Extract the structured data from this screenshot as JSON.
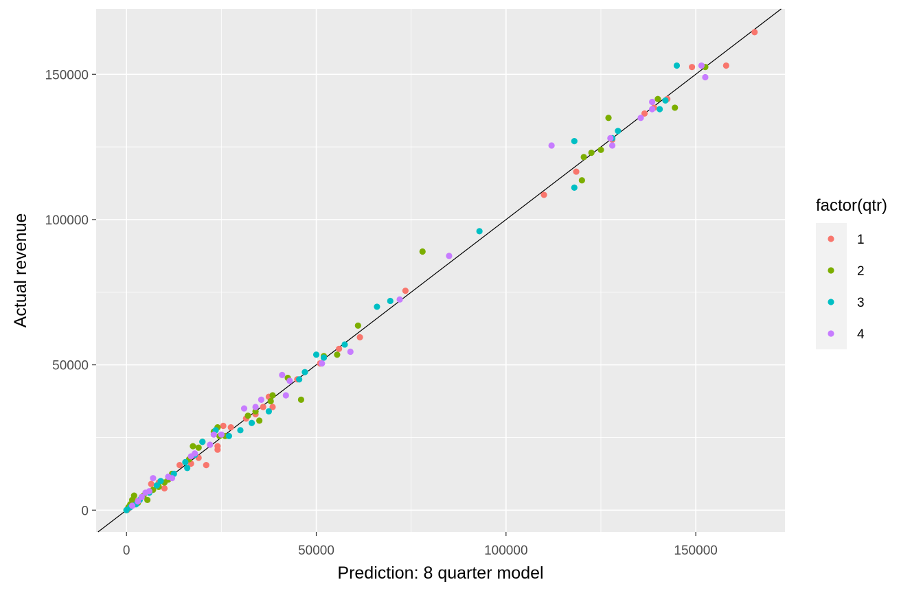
{
  "chart_data": {
    "type": "scatter",
    "xlabel": "Prediction: 8 quarter model",
    "ylabel": "Actual revenue",
    "xlim": [
      -8000,
      173500
    ],
    "ylim": [
      -7500,
      172500
    ],
    "x_ticks": [
      0,
      50000,
      100000,
      150000
    ],
    "x_tick_labels": [
      "0",
      "50000",
      "100000",
      "150000"
    ],
    "y_ticks": [
      0,
      50000,
      100000,
      150000
    ],
    "y_tick_labels": [
      "0",
      "50000",
      "100000",
      "150000"
    ],
    "grid": true,
    "reference_line": {
      "type": "identity",
      "slope": 1,
      "intercept": 0,
      "color": "#000000"
    },
    "legend": {
      "title": "factor(qtr)",
      "position": "right",
      "entries": [
        {
          "label": "1",
          "color": "#F8766D"
        },
        {
          "label": "2",
          "color": "#7CAE00"
        },
        {
          "label": "3",
          "color": "#00BFC4"
        },
        {
          "label": "4",
          "color": "#C77CFF"
        }
      ]
    },
    "series": [
      {
        "name": "1",
        "color": "#F8766D",
        "points": [
          [
            165500,
            164500
          ],
          [
            158000,
            153000
          ],
          [
            149000,
            152500
          ],
          [
            142500,
            141500
          ],
          [
            139000,
            138500
          ],
          [
            136500,
            136500
          ],
          [
            128000,
            127500
          ],
          [
            118500,
            116500
          ],
          [
            110000,
            108500
          ],
          [
            73500,
            75500
          ],
          [
            61500,
            59500
          ],
          [
            56000,
            55500
          ],
          [
            52000,
            52500
          ],
          [
            51000,
            50500
          ],
          [
            45000,
            45000
          ],
          [
            38500,
            35500
          ],
          [
            37500,
            39000
          ],
          [
            36000,
            35500
          ],
          [
            34000,
            33000
          ],
          [
            31500,
            31500
          ],
          [
            27500,
            28500
          ],
          [
            25500,
            29000
          ],
          [
            24000,
            22000
          ],
          [
            24000,
            20800
          ],
          [
            21000,
            15500
          ],
          [
            19000,
            18000
          ],
          [
            17000,
            16000
          ],
          [
            14000,
            15500
          ],
          [
            10000,
            7500
          ],
          [
            8500,
            9500
          ],
          [
            6500,
            9000
          ],
          [
            4000,
            4500
          ],
          [
            2500,
            3000
          ],
          [
            1500,
            2000
          ],
          [
            500,
            500
          ],
          [
            200,
            100
          ],
          [
            300,
            300
          ]
        ]
      },
      {
        "name": "2",
        "color": "#7CAE00",
        "points": [
          [
            152500,
            152500
          ],
          [
            144500,
            138500
          ],
          [
            140000,
            141500
          ],
          [
            127000,
            135000
          ],
          [
            125000,
            124000
          ],
          [
            122500,
            123000
          ],
          [
            120500,
            121500
          ],
          [
            120000,
            113500
          ],
          [
            78000,
            89000
          ],
          [
            61000,
            63500
          ],
          [
            55500,
            53500
          ],
          [
            52000,
            53000
          ],
          [
            46000,
            38000
          ],
          [
            42500,
            45500
          ],
          [
            38500,
            39500
          ],
          [
            38000,
            37500
          ],
          [
            35000,
            30800
          ],
          [
            34000,
            34000
          ],
          [
            32000,
            32500
          ],
          [
            26000,
            25500
          ],
          [
            24500,
            25500
          ],
          [
            24000,
            28500
          ],
          [
            23000,
            27000
          ],
          [
            20000,
            23500
          ],
          [
            19000,
            21500
          ],
          [
            17500,
            22000
          ],
          [
            16500,
            17500
          ],
          [
            12000,
            12500
          ],
          [
            11000,
            10500
          ],
          [
            10000,
            9500
          ],
          [
            8500,
            8000
          ],
          [
            7000,
            7000
          ],
          [
            5500,
            3500
          ],
          [
            4500,
            5000
          ],
          [
            3000,
            2500
          ],
          [
            2000,
            5000
          ],
          [
            1500,
            3500
          ],
          [
            1000,
            2000
          ],
          [
            500,
            1000
          ],
          [
            0,
            0
          ]
        ]
      },
      {
        "name": "3",
        "color": "#00BFC4",
        "points": [
          [
            145000,
            153000
          ],
          [
            142000,
            141000
          ],
          [
            140500,
            138000
          ],
          [
            129500,
            130500
          ],
          [
            128000,
            128000
          ],
          [
            118000,
            127000
          ],
          [
            118000,
            111000
          ],
          [
            93000,
            96000
          ],
          [
            69500,
            72000
          ],
          [
            66000,
            70000
          ],
          [
            57500,
            57000
          ],
          [
            52000,
            52500
          ],
          [
            50000,
            53500
          ],
          [
            47000,
            47500
          ],
          [
            45500,
            45000
          ],
          [
            37500,
            34000
          ],
          [
            33000,
            30000
          ],
          [
            30000,
            27500
          ],
          [
            27000,
            25500
          ],
          [
            23500,
            27500
          ],
          [
            20000,
            23500
          ],
          [
            18000,
            19000
          ],
          [
            16000,
            14500
          ],
          [
            15500,
            16500
          ],
          [
            12500,
            12500
          ],
          [
            9000,
            10000
          ],
          [
            8000,
            8500
          ],
          [
            6000,
            6000
          ],
          [
            3500,
            3500
          ],
          [
            2500,
            2000
          ],
          [
            1000,
            1000
          ],
          [
            0,
            0
          ]
        ]
      },
      {
        "name": "4",
        "color": "#C77CFF",
        "points": [
          [
            152500,
            149000
          ],
          [
            151500,
            153000
          ],
          [
            138500,
            140500
          ],
          [
            138500,
            138000
          ],
          [
            135500,
            135000
          ],
          [
            128000,
            125500
          ],
          [
            127500,
            128000
          ],
          [
            112000,
            125500
          ],
          [
            85000,
            87500
          ],
          [
            72000,
            72500
          ],
          [
            59000,
            54500
          ],
          [
            51500,
            50500
          ],
          [
            43000,
            44500
          ],
          [
            42000,
            39500
          ],
          [
            41000,
            46500
          ],
          [
            35500,
            38000
          ],
          [
            34000,
            35500
          ],
          [
            31000,
            35000
          ],
          [
            25000,
            26000
          ],
          [
            23000,
            26000
          ],
          [
            22000,
            22500
          ],
          [
            18000,
            19500
          ],
          [
            17000,
            18500
          ],
          [
            12000,
            11000
          ],
          [
            11000,
            11500
          ],
          [
            7000,
            11000
          ],
          [
            6000,
            6500
          ],
          [
            5000,
            6000
          ],
          [
            4000,
            4500
          ],
          [
            3000,
            3000
          ],
          [
            1500,
            1500
          ]
        ]
      }
    ]
  }
}
